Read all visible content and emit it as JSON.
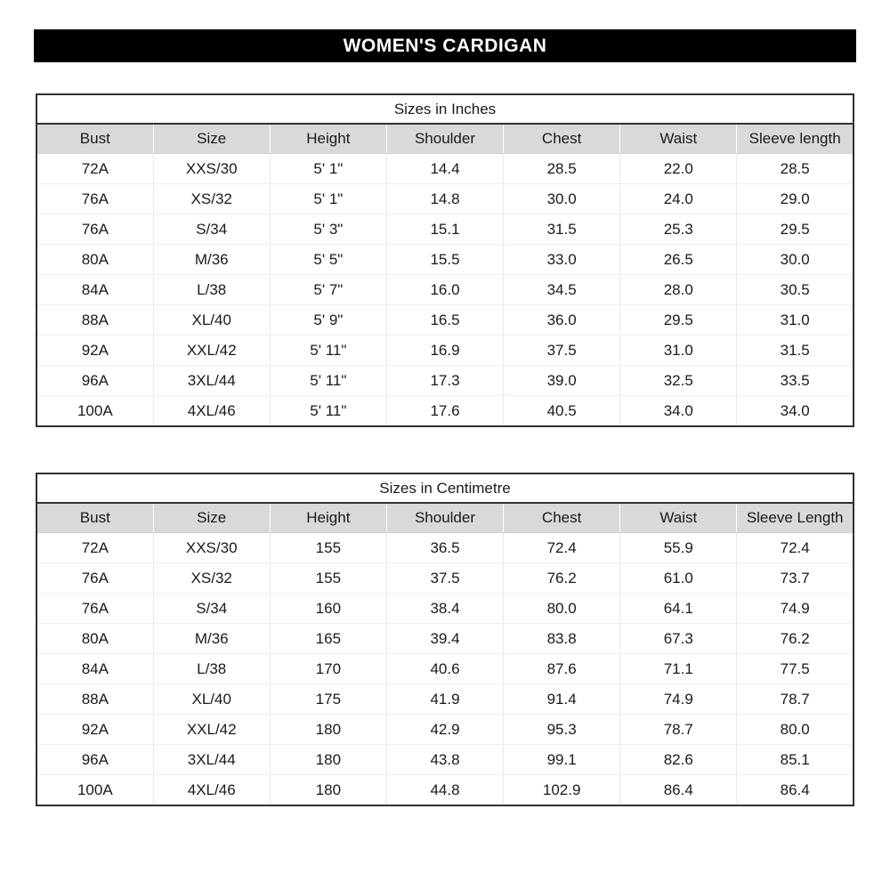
{
  "page": {
    "title": "WOMEN'S CARDIGAN"
  },
  "colors": {
    "banner_background": "#000000",
    "banner_text": "#ffffff",
    "header_row_background": "#d9d9d9",
    "table_border": "#303030",
    "body_text": "#1a1a1a"
  },
  "tables": [
    {
      "title": "Sizes in Inches",
      "columns": [
        "Bust",
        "Size",
        "Height",
        "Shoulder",
        "Chest",
        "Waist",
        "Sleeve length"
      ],
      "rows": [
        [
          "72A",
          "XXS/30",
          "5' 1\"",
          "14.4",
          "28.5",
          "22.0",
          "28.5"
        ],
        [
          "76A",
          "XS/32",
          "5' 1\"",
          "14.8",
          "30.0",
          "24.0",
          "29.0"
        ],
        [
          "76A",
          "S/34",
          "5' 3\"",
          "15.1",
          "31.5",
          "25.3",
          "29.5"
        ],
        [
          "80A",
          "M/36",
          "5' 5\"",
          "15.5",
          "33.0",
          "26.5",
          "30.0"
        ],
        [
          "84A",
          "L/38",
          "5' 7\"",
          "16.0",
          "34.5",
          "28.0",
          "30.5"
        ],
        [
          "88A",
          "XL/40",
          "5' 9\"",
          "16.5",
          "36.0",
          "29.5",
          "31.0"
        ],
        [
          "92A",
          "XXL/42",
          "5' 11\"",
          "16.9",
          "37.5",
          "31.0",
          "31.5"
        ],
        [
          "96A",
          "3XL/44",
          "5' 11\"",
          "17.3",
          "39.0",
          "32.5",
          "33.5"
        ],
        [
          "100A",
          "4XL/46",
          "5' 11\"",
          "17.6",
          "40.5",
          "34.0",
          "34.0"
        ]
      ]
    },
    {
      "title": "Sizes in Centimetre",
      "columns": [
        "Bust",
        "Size",
        "Height",
        "Shoulder",
        "Chest",
        "Waist",
        "Sleeve Length"
      ],
      "rows": [
        [
          "72A",
          "XXS/30",
          "155",
          "36.5",
          "72.4",
          "55.9",
          "72.4"
        ],
        [
          "76A",
          "XS/32",
          "155",
          "37.5",
          "76.2",
          "61.0",
          "73.7"
        ],
        [
          "76A",
          "S/34",
          "160",
          "38.4",
          "80.0",
          "64.1",
          "74.9"
        ],
        [
          "80A",
          "M/36",
          "165",
          "39.4",
          "83.8",
          "67.3",
          "76.2"
        ],
        [
          "84A",
          "L/38",
          "170",
          "40.6",
          "87.6",
          "71.1",
          "77.5"
        ],
        [
          "88A",
          "XL/40",
          "175",
          "41.9",
          "91.4",
          "74.9",
          "78.7"
        ],
        [
          "92A",
          "XXL/42",
          "180",
          "42.9",
          "95.3",
          "78.7",
          "80.0"
        ],
        [
          "96A",
          "3XL/44",
          "180",
          "43.8",
          "99.1",
          "82.6",
          "85.1"
        ],
        [
          "100A",
          "4XL/46",
          "180",
          "44.8",
          "102.9",
          "86.4",
          "86.4"
        ]
      ]
    }
  ]
}
